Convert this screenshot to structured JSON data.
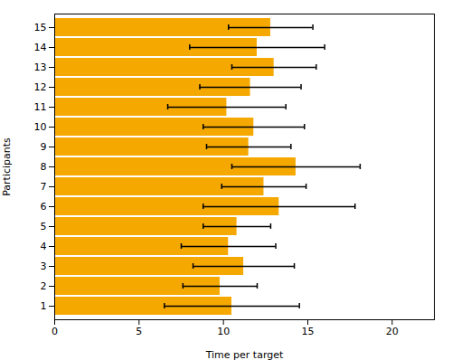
{
  "chart_data": {
    "type": "bar",
    "orientation": "horizontal",
    "categories": [
      "1",
      "2",
      "3",
      "4",
      "5",
      "6",
      "7",
      "8",
      "9",
      "10",
      "11",
      "12",
      "13",
      "14",
      "15"
    ],
    "values": [
      10.5,
      9.8,
      11.2,
      10.3,
      10.8,
      13.3,
      12.4,
      14.3,
      11.5,
      11.8,
      10.2,
      11.6,
      13.0,
      12.0,
      12.8
    ],
    "errors": [
      4.0,
      2.2,
      3.0,
      2.8,
      2.0,
      4.5,
      2.5,
      3.8,
      2.5,
      3.0,
      3.5,
      3.0,
      2.5,
      4.0,
      2.5
    ],
    "color": "#F5A800",
    "xlabel": "Time per target",
    "ylabel": "Participants",
    "xlim": [
      0,
      22.5
    ],
    "xticks": [
      0,
      5,
      10,
      15,
      20
    ],
    "grid": false
  }
}
